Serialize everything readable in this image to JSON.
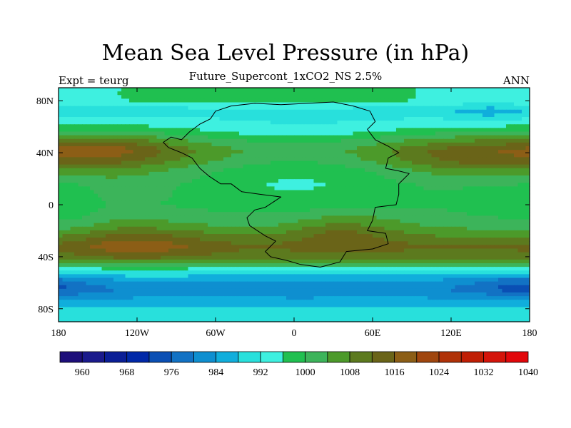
{
  "chart_data": {
    "type": "heatmap",
    "title": "Mean Sea Level Pressure (in hPa)",
    "subtitle": "Future_Supercont_1xCO2_NS 2.5%",
    "left_annotation": "Expt = teurg",
    "right_annotation": "ANN",
    "x_axis": {
      "range": [
        -180,
        180
      ],
      "ticks": [
        {
          "value": -180,
          "label": "180"
        },
        {
          "value": -120,
          "label": "120W"
        },
        {
          "value": -60,
          "label": "60W"
        },
        {
          "value": 0,
          "label": "0"
        },
        {
          "value": 60,
          "label": "60E"
        },
        {
          "value": 120,
          "label": "120E"
        },
        {
          "value": 180,
          "label": "180"
        }
      ]
    },
    "y_axis": {
      "range": [
        -90,
        90
      ],
      "ticks": [
        {
          "value": 80,
          "label": "80N"
        },
        {
          "value": 40,
          "label": "40N"
        },
        {
          "value": 0,
          "label": "0"
        },
        {
          "value": -40,
          "label": "40S"
        },
        {
          "value": -80,
          "label": "80S"
        }
      ]
    },
    "zonal_profile": [
      {
        "lat": 90,
        "value": 996
      },
      {
        "lat": 80,
        "value": 996
      },
      {
        "lat": 72,
        "value": 990
      },
      {
        "lat": 62,
        "value": 996
      },
      {
        "lat": 56,
        "value": 1001
      },
      {
        "lat": 50,
        "value": 1008
      },
      {
        "lat": 42,
        "value": 1014
      },
      {
        "lat": 34,
        "value": 1012
      },
      {
        "lat": 26,
        "value": 1007
      },
      {
        "lat": 15,
        "value": 1003
      },
      {
        "lat": 0,
        "value": 1001
      },
      {
        "lat": -15,
        "value": 1004
      },
      {
        "lat": -25,
        "value": 1009
      },
      {
        "lat": -32,
        "value": 1013
      },
      {
        "lat": -40,
        "value": 1010
      },
      {
        "lat": -45,
        "value": 1004
      },
      {
        "lat": -50,
        "value": 994
      },
      {
        "lat": -58,
        "value": 984
      },
      {
        "lat": -65,
        "value": 980
      },
      {
        "lat": -70,
        "value": 983
      },
      {
        "lat": -78,
        "value": 988
      },
      {
        "lat": -90,
        "value": 990
      }
    ],
    "anomalies": [
      {
        "lon": -145,
        "lat": 42,
        "sx": 32,
        "sy": 8,
        "amp": 6
      },
      {
        "lon": 135,
        "lat": 35,
        "sx": 40,
        "sy": 8,
        "amp": 4
      },
      {
        "lon": -120,
        "lat": -30,
        "sx": 40,
        "sy": 10,
        "amp": 6
      },
      {
        "lon": 150,
        "lat": 72,
        "sx": 20,
        "sy": 7,
        "amp": -4
      },
      {
        "lon": 0,
        "lat": 40,
        "sx": 70,
        "sy": 22,
        "amp": -11
      },
      {
        "lon": -5,
        "lat": 72,
        "sx": 60,
        "sy": 12,
        "amp": 4
      },
      {
        "lon": 5,
        "lat": 0,
        "sx": 60,
        "sy": 28,
        "amp": -2
      },
      {
        "lon": 35,
        "lat": -20,
        "sx": 30,
        "sy": 10,
        "amp": 7
      },
      {
        "lon": 155,
        "lat": 0,
        "sx": 28,
        "sy": 22,
        "amp": -3
      },
      {
        "lon": -170,
        "lat": 0,
        "sx": 15,
        "sy": 20,
        "amp": -3
      },
      {
        "lon": 170,
        "lat": -62,
        "sx": 25,
        "sy": 7,
        "amp": -6
      }
    ],
    "colorbar": {
      "min": 956,
      "step": 4,
      "colors": [
        "#1d0e7a",
        "#1a1a8c",
        "#0a1e96",
        "#0028a8",
        "#0a4fb4",
        "#1272c4",
        "#0e8fd0",
        "#10aedc",
        "#28e0dc",
        "#3ef0e0",
        "#20c050",
        "#3cb45a",
        "#4c9a2a",
        "#5c7a1e",
        "#6a6418",
        "#8c5e16",
        "#a0460e",
        "#b03208",
        "#c01e04",
        "#d4140a",
        "#e2070a"
      ],
      "labels": [
        "960",
        "968",
        "976",
        "984",
        "992",
        "1000",
        "1008",
        "1016",
        "1024",
        "1032",
        "1040"
      ]
    },
    "continent_outline": {
      "closed": true,
      "points": [
        [
          -60,
          72
        ],
        [
          -48,
          76
        ],
        [
          -30,
          78
        ],
        [
          -10,
          77
        ],
        [
          10,
          78
        ],
        [
          30,
          79
        ],
        [
          45,
          76
        ],
        [
          58,
          72
        ],
        [
          62,
          64
        ],
        [
          56,
          58
        ],
        [
          62,
          50
        ],
        [
          72,
          45
        ],
        [
          80,
          40
        ],
        [
          72,
          36
        ],
        [
          70,
          28
        ],
        [
          80,
          26
        ],
        [
          88,
          24
        ],
        [
          80,
          16
        ],
        [
          80,
          8
        ],
        [
          78,
          0
        ],
        [
          62,
          -2
        ],
        [
          60,
          -12
        ],
        [
          56,
          -20
        ],
        [
          70,
          -22
        ],
        [
          72,
          -30
        ],
        [
          60,
          -34
        ],
        [
          40,
          -36
        ],
        [
          35,
          -44
        ],
        [
          20,
          -48
        ],
        [
          5,
          -46
        ],
        [
          -5,
          -43
        ],
        [
          -18,
          -40
        ],
        [
          -22,
          -36
        ],
        [
          -14,
          -28
        ],
        [
          -22,
          -24
        ],
        [
          -34,
          -16
        ],
        [
          -36,
          -10
        ],
        [
          -30,
          -4
        ],
        [
          -22,
          -2
        ],
        [
          -10,
          6
        ],
        [
          -26,
          8
        ],
        [
          -40,
          10
        ],
        [
          -48,
          16
        ],
        [
          -56,
          16
        ],
        [
          -65,
          22
        ],
        [
          -72,
          28
        ],
        [
          -78,
          36
        ],
        [
          -86,
          40
        ],
        [
          -96,
          44
        ],
        [
          -100,
          48
        ],
        [
          -94,
          52
        ],
        [
          -86,
          50
        ],
        [
          -80,
          56
        ],
        [
          -72,
          62
        ],
        [
          -64,
          66
        ]
      ]
    }
  }
}
